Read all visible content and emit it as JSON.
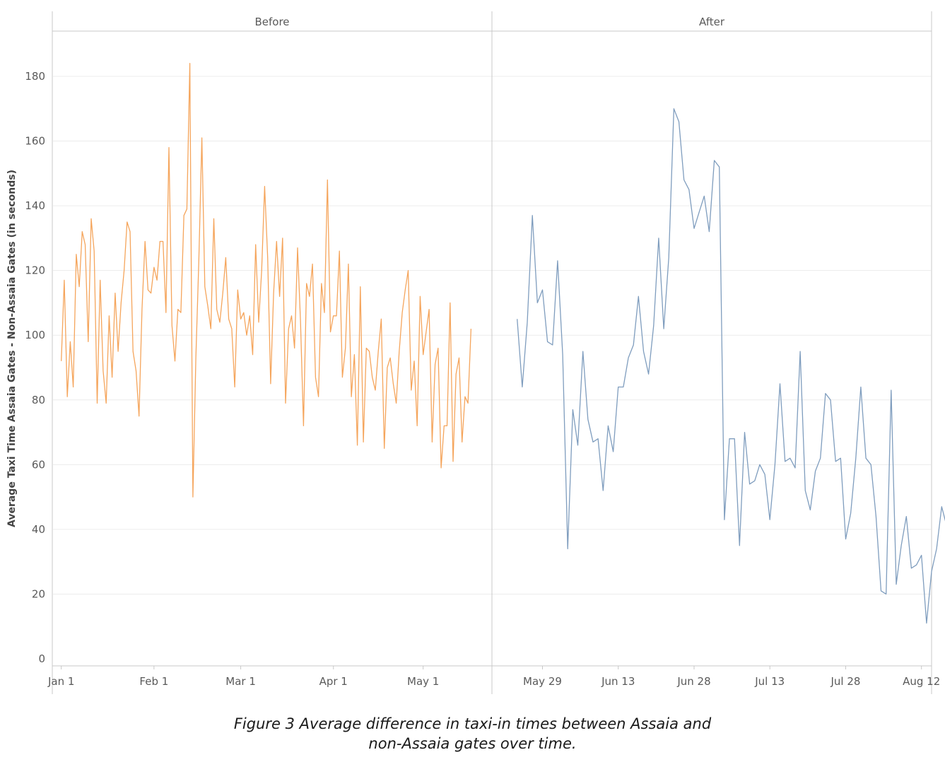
{
  "chart_data": {
    "type": "line",
    "ylabel": "Average Taxi Time Assaia Gates - Non-Assaia Gates (in seconds)",
    "ylim": [
      0,
      190
    ],
    "yticks": [
      0,
      20,
      40,
      60,
      80,
      100,
      120,
      140,
      160,
      180
    ],
    "grid": true,
    "panels": [
      {
        "title": "Before",
        "color": "#f5a55c",
        "x_range": [
          "2023-12-29",
          "2024-05-24"
        ],
        "x_ticks": [
          {
            "label": "Jan 1",
            "date": "2024-01-01"
          },
          {
            "label": "Feb 1",
            "date": "2024-02-01"
          },
          {
            "label": "Mar 1",
            "date": "2024-03-01"
          },
          {
            "label": "Apr 1",
            "date": "2024-04-01"
          },
          {
            "label": "May 1",
            "date": "2024-05-01"
          }
        ],
        "x_start": "2024-01-01",
        "values": [
          92,
          117,
          81,
          98,
          84,
          125,
          115,
          132,
          128,
          98,
          136,
          126,
          79,
          117,
          89,
          79,
          106,
          87,
          113,
          95,
          110,
          120,
          135,
          132,
          95,
          89,
          75,
          108,
          129,
          114,
          113,
          121,
          117,
          129,
          129,
          107,
          158,
          103,
          92,
          108,
          107,
          137,
          139,
          184,
          50,
          93,
          123,
          161,
          115,
          109,
          102,
          136,
          108,
          104,
          113,
          124,
          105,
          102,
          84,
          114,
          105,
          107,
          100,
          106,
          94,
          128,
          104,
          120,
          146,
          124,
          85,
          113,
          129,
          112,
          130,
          79,
          102,
          106,
          96,
          127,
          104,
          72,
          116,
          112,
          122,
          87,
          81,
          116,
          107,
          148,
          101,
          106,
          106,
          126,
          87,
          96,
          122,
          81,
          94,
          66,
          115,
          67,
          96,
          95,
          87,
          83,
          95,
          105,
          65,
          90,
          93,
          85,
          79,
          95,
          107,
          114,
          120,
          83,
          92,
          72,
          112,
          94,
          101,
          108,
          67,
          91,
          96,
          59,
          72,
          72,
          110,
          61,
          88,
          93,
          67,
          81,
          79,
          102
        ]
      },
      {
        "title": "After",
        "color": "#7f9dbe",
        "x_range": [
          "2024-05-19",
          "2024-08-14"
        ],
        "x_ticks": [
          {
            "label": "May 29",
            "date": "2024-05-29"
          },
          {
            "label": "Jun 13",
            "date": "2024-06-13"
          },
          {
            "label": "Jun 28",
            "date": "2024-06-28"
          },
          {
            "label": "Jul 13",
            "date": "2024-07-13"
          },
          {
            "label": "Jul 28",
            "date": "2024-07-28"
          },
          {
            "label": "Aug 12",
            "date": "2024-08-12"
          }
        ],
        "x_start": "2024-05-24",
        "values": [
          105,
          84,
          104,
          137,
          110,
          114,
          98,
          97,
          123,
          94,
          34,
          77,
          66,
          95,
          74,
          67,
          68,
          52,
          72,
          64,
          84,
          84,
          93,
          97,
          112,
          95,
          88,
          103,
          130,
          102,
          124,
          170,
          166,
          148,
          145,
          133,
          138,
          143,
          132,
          154,
          152,
          43,
          68,
          68,
          35,
          70,
          54,
          55,
          60,
          57,
          43,
          60,
          85,
          61,
          62,
          59,
          95,
          52,
          46,
          58,
          62,
          82,
          80,
          61,
          62,
          37,
          45,
          62,
          84,
          62,
          60,
          44,
          21,
          20,
          83,
          23,
          35,
          44,
          28,
          29,
          32,
          11,
          27,
          34,
          47,
          41
        ]
      }
    ]
  },
  "caption": {
    "line1": "Figure 3  Average difference in taxi-in times between Assaia and",
    "line2": "non-Assaia gates over time."
  }
}
